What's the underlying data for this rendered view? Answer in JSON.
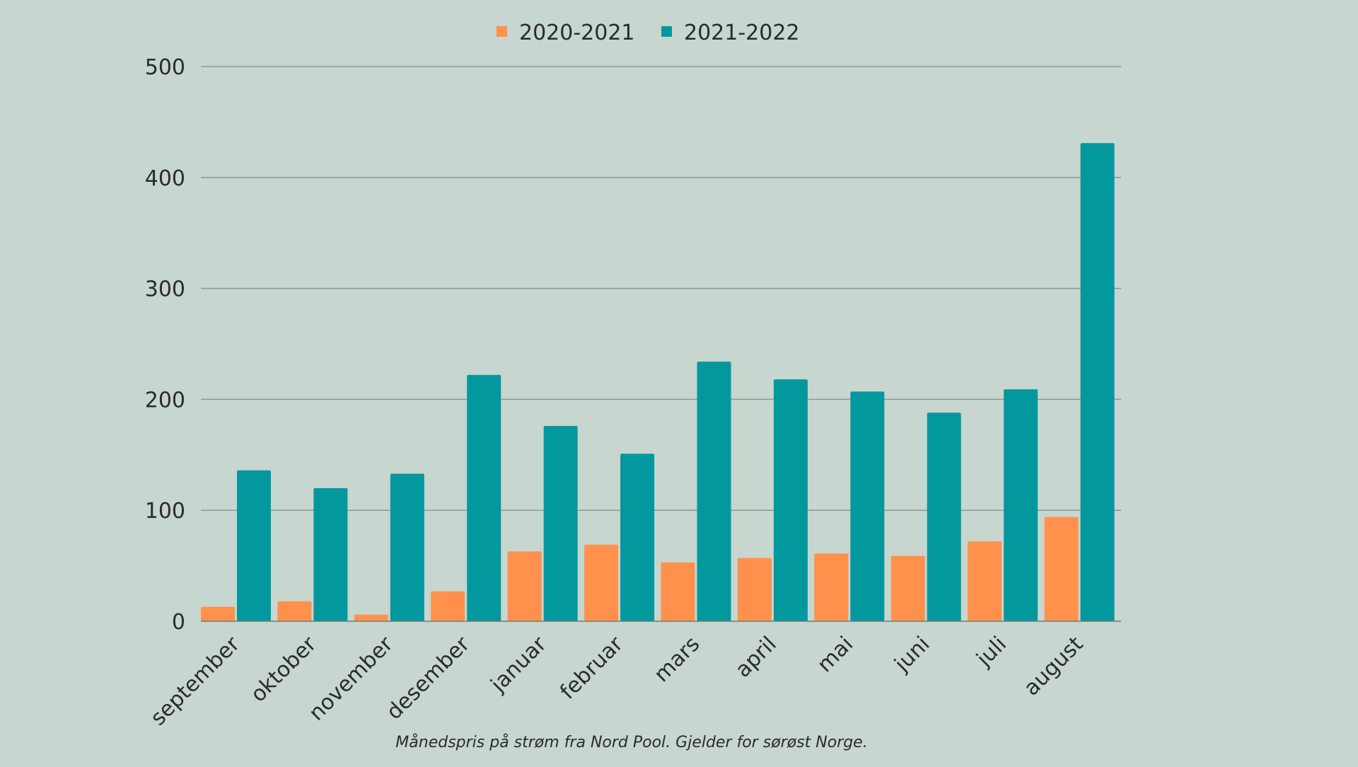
{
  "chart_data": {
    "type": "bar",
    "title": "",
    "xlabel": "",
    "ylabel": "",
    "ylim": [
      0,
      500
    ],
    "yticks": [
      0,
      100,
      200,
      300,
      400,
      500
    ],
    "grid": true,
    "legend_position": "top-center",
    "categories": [
      "september",
      "oktober",
      "november",
      "desember",
      "januar",
      "februar",
      "mars",
      "april",
      "mai",
      "juni",
      "juli",
      "august"
    ],
    "series": [
      {
        "name": "2020-2021",
        "color": "#ff914d",
        "values": [
          13,
          18,
          6,
          27,
          63,
          69,
          53,
          57,
          61,
          59,
          72,
          94
        ]
      },
      {
        "name": "2021-2022",
        "color": "#03989e",
        "values": [
          136,
          120,
          133,
          222,
          176,
          151,
          234,
          218,
          207,
          188,
          209,
          431
        ]
      }
    ],
    "caption": "Månedspris på strøm fra Nord Pool. Gjelder for sørøst Norge."
  }
}
